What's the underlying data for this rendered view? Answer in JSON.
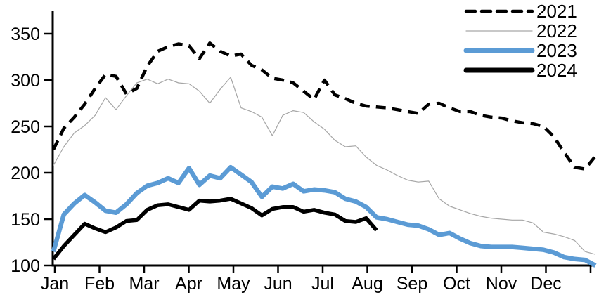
{
  "chart_data": {
    "type": "line",
    "title": "",
    "xlabel": "",
    "ylabel": "",
    "x_categories": [
      "Jan",
      "Feb",
      "Mar",
      "Apr",
      "May",
      "Jun",
      "Jul",
      "Aug",
      "Sep",
      "Oct",
      "Nov",
      "Dec"
    ],
    "y_ticks": [
      100,
      150,
      200,
      250,
      300,
      350
    ],
    "ylim": [
      100,
      375
    ],
    "grid": false,
    "legend_position": "top-right",
    "points_per_year": 52,
    "axis_color": "#000000",
    "series": [
      {
        "name": "2021",
        "color": "#000000",
        "style": "dashed",
        "width": 4.5,
        "values": [
          225,
          248,
          260,
          274,
          291,
          306,
          304,
          285,
          291,
          315,
          331,
          336,
          339,
          337,
          323,
          340,
          331,
          326,
          328,
          316,
          311,
          302,
          300,
          297,
          288,
          279,
          300,
          284,
          280,
          275,
          272,
          271,
          270,
          268,
          266,
          264,
          274,
          275,
          270,
          266,
          266,
          262,
          260,
          259,
          256,
          254,
          253,
          250,
          239,
          222,
          206,
          204,
          218
        ]
      },
      {
        "name": "2022",
        "color": "#a6a6a6",
        "style": "solid",
        "width": 1.2,
        "values": [
          208,
          228,
          243,
          251,
          262,
          281,
          268,
          283,
          297,
          301,
          296,
          301,
          297,
          296,
          288,
          275,
          290,
          303,
          270,
          266,
          260,
          240,
          262,
          267,
          265,
          255,
          247,
          235,
          228,
          229,
          217,
          208,
          203,
          197,
          192,
          190,
          191,
          172,
          164,
          160,
          156,
          153,
          151,
          150,
          149,
          149,
          146,
          136,
          134,
          131,
          127,
          115,
          112
        ]
      },
      {
        "name": "2023",
        "color": "#5b9bd5",
        "style": "solid",
        "width": 6.5,
        "values": [
          115,
          155,
          167,
          176,
          168,
          159,
          157,
          166,
          178,
          186,
          189,
          194,
          189,
          205,
          187,
          197,
          194,
          206,
          198,
          190,
          174,
          185,
          183,
          188,
          180,
          182,
          181,
          179,
          172,
          169,
          163,
          152,
          150,
          147,
          144,
          143,
          139,
          133,
          135,
          129,
          124,
          121,
          120,
          120,
          120,
          119,
          118,
          117,
          114,
          109,
          107,
          106,
          100
        ]
      },
      {
        "name": "2024",
        "color": "#000000",
        "style": "solid",
        "width": 5.5,
        "values": [
          107,
          121,
          133,
          145,
          140,
          136,
          141,
          148,
          149,
          160,
          165,
          166,
          163,
          160,
          170,
          169,
          170,
          172,
          167,
          162,
          154,
          161,
          163,
          163,
          158,
          160,
          157,
          155,
          148,
          147,
          151,
          138
        ]
      }
    ]
  }
}
